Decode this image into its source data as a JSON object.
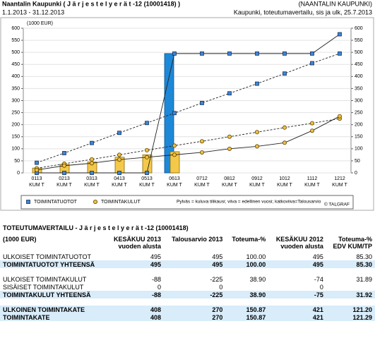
{
  "header": {
    "title": "Naantalin Kaupunki ( J ä r j e s t e l y e r ä t -12 (10001418) )",
    "org": "(NAANTALIN KAUPUNKI)",
    "period": "1.1.2013 - 31.12.2013",
    "info": "Kaupunki, toteutumavertailu, sis ja ulk, 25.7.2013"
  },
  "chart_data": {
    "type": "bar-line",
    "ylabel": "(1000 EUR)",
    "categories": [
      "0113 KUM T",
      "0213 KUM T",
      "0313 KUM T",
      "0413 KUM T",
      "0513 KUM T",
      "0613 KUM T",
      "0712 KUM T",
      "0812 KUM T",
      "0912 KUM T",
      "1012 KUM T",
      "1112 KUM T",
      "1212 KUM T"
    ],
    "series": [
      {
        "name": "TOIMINTATUOTOT",
        "color": "#1e88d8",
        "marker": "square",
        "bars": [
          0,
          0,
          0,
          0,
          0,
          495,
          null,
          null,
          null,
          null,
          null,
          null
        ],
        "previous": [
          0,
          0,
          0,
          0,
          0,
          495,
          495,
          495,
          495,
          495,
          495,
          575
        ],
        "budget": [
          42,
          82,
          124,
          166,
          207,
          248,
          290,
          330,
          370,
          412,
          455,
          495
        ]
      },
      {
        "name": "TOIMINTAKULUT",
        "color": "#f4c84a",
        "marker": "circle",
        "bars": [
          20,
          35,
          45,
          65,
          75,
          88,
          null,
          null,
          null,
          null,
          null,
          null
        ],
        "previous": [
          12,
          30,
          40,
          55,
          65,
          75,
          85,
          100,
          110,
          125,
          175,
          235
        ],
        "budget": [
          19,
          38,
          56,
          75,
          94,
          113,
          131,
          150,
          169,
          188,
          206,
          225
        ]
      }
    ],
    "ylim": [
      0,
      600
    ],
    "yticks": [
      0,
      50,
      100,
      150,
      200,
      250,
      300,
      350,
      400,
      450,
      500,
      550,
      600
    ],
    "grid": true,
    "legend_note": "Pylväs = kuluva tilikausi; viiva = edellinen vuosi; katkoviiva=Talousarvio",
    "credit": "© TALGRAF"
  },
  "table": {
    "title": "TOTEUTUMAVERTAILU - J ä r j e s t e l y e r ä t -12 (10001418)",
    "header": [
      [
        "(1000 EUR)"
      ],
      [
        "KESÄKUU 2013",
        "vuoden alusta"
      ],
      [
        "Talousarvio 2013"
      ],
      [
        "Toteuma-%"
      ],
      [
        "KESÄKUU 2012",
        "vuoden alusta"
      ],
      [
        "Toteuma-%",
        "EDV KUM/TP"
      ]
    ],
    "groups": [
      [
        {
          "sum": false,
          "cells": [
            "ULKOISET TOIMINTATUOTOT",
            "495",
            "495",
            "100.00",
            "495",
            "85.30"
          ]
        },
        {
          "sum": true,
          "cells": [
            "TOIMINTATUOTOT YHTEENSÄ",
            "495",
            "495",
            "100.00",
            "495",
            "85.30"
          ]
        }
      ],
      [
        {
          "sum": false,
          "cells": [
            "ULKOISET TOIMINTAKULUT",
            "-88",
            "-225",
            "38.90",
            "-74",
            "31.89"
          ]
        },
        {
          "sum": false,
          "cells": [
            "SISÄISET TOIMINTAKULUT",
            "0",
            "0",
            null,
            "0",
            null
          ]
        },
        {
          "sum": true,
          "cells": [
            "TOIMINTAKULUT YHTEENSÄ",
            "-88",
            "-225",
            "38.90",
            "-75",
            "31.92"
          ]
        }
      ],
      [
        {
          "sum": true,
          "cells": [
            "ULKOINEN TOIMINTAKATE",
            "408",
            "270",
            "150.87",
            "421",
            "121.20"
          ]
        },
        {
          "sum": true,
          "cells": [
            "TOIMINTAKATE",
            "408",
            "270",
            "150.87",
            "421",
            "121.29"
          ]
        }
      ]
    ]
  }
}
